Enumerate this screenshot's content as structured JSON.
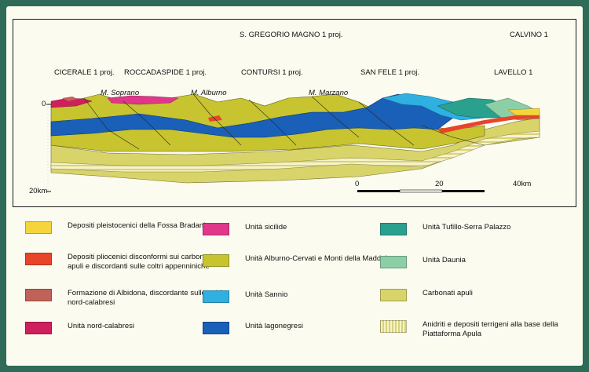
{
  "section": {
    "wells": [
      {
        "label": "S. GREGORIO MAGNO 1 proj."
      },
      {
        "label": "CALVINO 1"
      },
      {
        "label": "CICERALE 1 proj."
      },
      {
        "label": "ROCCADASPIDE 1 proj."
      },
      {
        "label": "CONTURSI 1 proj."
      },
      {
        "label": "SAN FELE 1 proj."
      },
      {
        "label": "LAVELLO 1"
      }
    ],
    "mountains": [
      {
        "label": "M. Soprano"
      },
      {
        "label": "M. Alburno"
      },
      {
        "label": "M. Marzano"
      }
    ],
    "depth_labels": {
      "top": "0",
      "bottom": "20km"
    },
    "scale": {
      "ticks": [
        "0",
        "20",
        "40km"
      ]
    }
  },
  "legend": [
    {
      "text": "Depositi pleistocenici della Fossa Bradanica",
      "color": "#f6d53c"
    },
    {
      "text": "Depositi pliocenici disconformi sui carbonati apuli e discordanti sulle coltri appenniniche",
      "color": "#e8442a"
    },
    {
      "text": "Formazione di Albidona, discordante sulle unità nord-calabresi",
      "color": "#c0625a"
    },
    {
      "text": "Unità nord-calabresi",
      "color": "#cf1f5c"
    },
    {
      "text": "Unità sicilide",
      "color": "#e0378a"
    },
    {
      "text": "Unità Alburno-Cervati e Monti della Maddalena",
      "color": "#c7c430"
    },
    {
      "text": "Unità Sannio",
      "color": "#2fb0e0"
    },
    {
      "text": "Unità lagonegresi",
      "color": "#1a5fb8"
    },
    {
      "text": "Unità Tufillo-Serra Palazzo",
      "color": "#2aa08e"
    },
    {
      "text": "Unità Daunia",
      "color": "#8ccfa6"
    },
    {
      "text": "Carbonati apuli",
      "color": "#d9d46a"
    },
    {
      "text": "Anidriti e depositi terrigeni alla base della Piattaforma Apula",
      "color": "#f3f0c0",
      "striped": true
    }
  ]
}
